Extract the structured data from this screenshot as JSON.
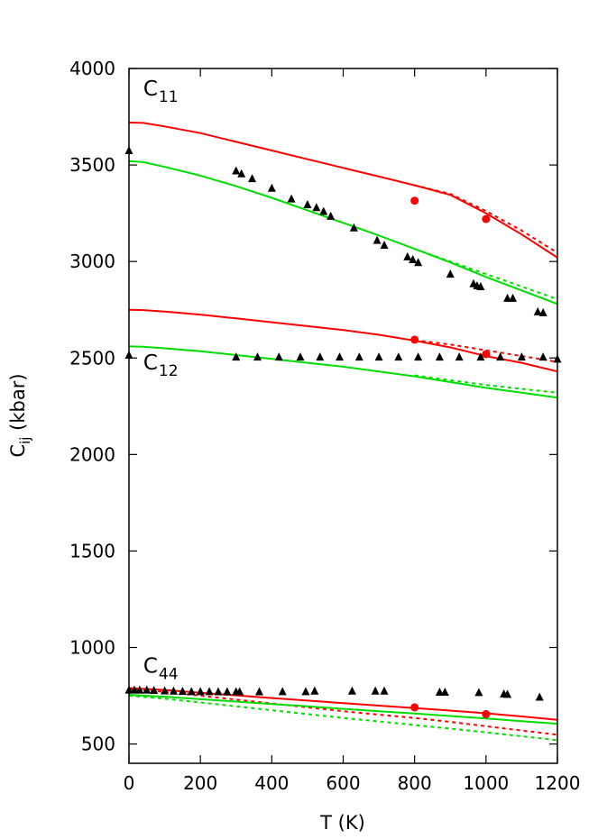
{
  "chart_data": {
    "type": "line",
    "title": "",
    "xlabel": "T (K)",
    "ylabel_main": "C",
    "ylabel_sub": "ij",
    "ylabel_unit": " (kbar)",
    "xlim": [
      0,
      1200
    ],
    "ylim": [
      400,
      4000
    ],
    "xticks": [
      "0",
      "200",
      "400",
      "600",
      "800",
      "1000",
      "1200"
    ],
    "yticks": [
      "500",
      "1000",
      "1500",
      "2000",
      "2500",
      "3000",
      "3500",
      "4000"
    ],
    "grid": false,
    "legend": "none",
    "annotations": [
      {
        "main": "C",
        "sub": "11",
        "x": 40,
        "y": 3860
      },
      {
        "main": "C",
        "sub": "12",
        "x": 40,
        "y": 2440
      },
      {
        "main": "C",
        "sub": "44",
        "x": 40,
        "y": 870
      }
    ],
    "colors": {
      "red": "#ff0000",
      "green": "#00dd00",
      "black": "#000000"
    },
    "series": [
      {
        "color": "#ff0000",
        "style": "solid",
        "x": [
          0,
          40,
          100,
          200,
          300,
          400,
          500,
          600,
          700,
          800,
          900,
          1000,
          1100,
          1200
        ],
        "y": [
          3720,
          3718,
          3700,
          3665,
          3620,
          3575,
          3530,
          3485,
          3440,
          3395,
          3345,
          3250,
          3140,
          3020
        ]
      },
      {
        "color": "#ff0000",
        "style": "dotted",
        "x": [
          800,
          900,
          1000,
          1100,
          1200
        ],
        "y": [
          3395,
          3350,
          3262,
          3160,
          3045
        ]
      },
      {
        "color": "#00dd00",
        "style": "solid",
        "x": [
          0,
          40,
          100,
          200,
          300,
          400,
          500,
          600,
          700,
          800,
          900,
          1000,
          1100,
          1200
        ],
        "y": [
          3520,
          3515,
          3490,
          3445,
          3390,
          3330,
          3265,
          3200,
          3135,
          3065,
          2995,
          2920,
          2850,
          2780
        ]
      },
      {
        "color": "#00dd00",
        "style": "dotted",
        "x": [
          800,
          900,
          1000,
          1100,
          1200
        ],
        "y": [
          3065,
          3000,
          2935,
          2870,
          2805
        ]
      },
      {
        "color": "#ff0000",
        "style": "solid",
        "x": [
          0,
          40,
          100,
          200,
          300,
          400,
          500,
          600,
          700,
          800,
          900,
          1000,
          1100,
          1200
        ],
        "y": [
          2750,
          2748,
          2740,
          2725,
          2705,
          2685,
          2665,
          2645,
          2620,
          2590,
          2555,
          2510,
          2475,
          2430
        ]
      },
      {
        "color": "#ff0000",
        "style": "dotted",
        "x": [
          800,
          900,
          1000,
          1100,
          1200
        ],
        "y": [
          2592,
          2570,
          2540,
          2510,
          2480
        ]
      },
      {
        "color": "#00dd00",
        "style": "solid",
        "x": [
          0,
          40,
          100,
          200,
          300,
          400,
          500,
          600,
          700,
          800,
          900,
          1000,
          1100,
          1200
        ],
        "y": [
          2560,
          2558,
          2550,
          2535,
          2515,
          2495,
          2475,
          2455,
          2430,
          2405,
          2375,
          2345,
          2320,
          2295
        ]
      },
      {
        "color": "#00dd00",
        "style": "dotted",
        "x": [
          800,
          900,
          1000,
          1100,
          1200
        ],
        "y": [
          2410,
          2385,
          2360,
          2340,
          2320
        ]
      },
      {
        "color": "#ff0000",
        "style": "solid",
        "x": [
          0,
          100,
          200,
          300,
          400,
          500,
          600,
          700,
          800,
          900,
          1000,
          1100,
          1200
        ],
        "y": [
          790,
          780,
          765,
          752,
          738,
          725,
          712,
          699,
          686,
          673,
          659,
          643,
          625
        ]
      },
      {
        "color": "#ff0000",
        "style": "dotted",
        "x": [
          0,
          100,
          200,
          300,
          400,
          500,
          600,
          700,
          800,
          900,
          1000,
          1100,
          1200
        ],
        "y": [
          785,
          770,
          750,
          730,
          710,
          690,
          670,
          652,
          635,
          615,
          592,
          570,
          548
        ]
      },
      {
        "color": "#00dd00",
        "style": "solid",
        "x": [
          0,
          100,
          200,
          300,
          400,
          500,
          600,
          700,
          800,
          900,
          1000,
          1100,
          1200
        ],
        "y": [
          755,
          745,
          732,
          720,
          707,
          695,
          682,
          670,
          658,
          645,
          632,
          618,
          605
        ]
      },
      {
        "color": "#00dd00",
        "style": "dotted",
        "x": [
          0,
          100,
          200,
          300,
          400,
          500,
          600,
          700,
          800,
          900,
          1000,
          1100,
          1200
        ],
        "y": [
          750,
          735,
          715,
          695,
          675,
          655,
          635,
          617,
          598,
          580,
          560,
          540,
          520
        ]
      },
      {
        "color": "#ff0000",
        "style": "points-circle",
        "x": [
          800,
          1000,
          800,
          1000,
          800,
          1000
        ],
        "y": [
          3315,
          3220,
          2595,
          2520,
          690,
          655
        ]
      },
      {
        "color": "#000000",
        "style": "points-triangle",
        "x": [
          0,
          300,
          315,
          345,
          400,
          455,
          500,
          525,
          545,
          565,
          630,
          695,
          715,
          780,
          795,
          810,
          900,
          965,
          975,
          985,
          1060,
          1075,
          1145,
          1160,
          0,
          300,
          360,
          420,
          480,
          535,
          590,
          645,
          700,
          755,
          810,
          870,
          925,
          985,
          1040,
          1100,
          1160,
          1200,
          0,
          15,
          30,
          50,
          70,
          100,
          125,
          150,
          175,
          200,
          225,
          250,
          275,
          300,
          310,
          365,
          430,
          495,
          520,
          625,
          690,
          715,
          870,
          885,
          980,
          1050,
          1060,
          1150
        ],
        "y": [
          3575,
          3470,
          3455,
          3430,
          3380,
          3325,
          3295,
          3280,
          3260,
          3235,
          3175,
          3110,
          3085,
          3025,
          3010,
          2995,
          2935,
          2885,
          2875,
          2870,
          2810,
          2810,
          2740,
          2735,
          2515,
          2505,
          2505,
          2505,
          2505,
          2505,
          2505,
          2505,
          2505,
          2505,
          2505,
          2505,
          2505,
          2505,
          2505,
          2505,
          2505,
          2495,
          780,
          780,
          780,
          780,
          778,
          776,
          775,
          773,
          772,
          772,
          772,
          771,
          771,
          771,
          771,
          771,
          772,
          772,
          775,
          775,
          775,
          775,
          769,
          769,
          767,
          760,
          758,
          743
        ]
      }
    ]
  }
}
